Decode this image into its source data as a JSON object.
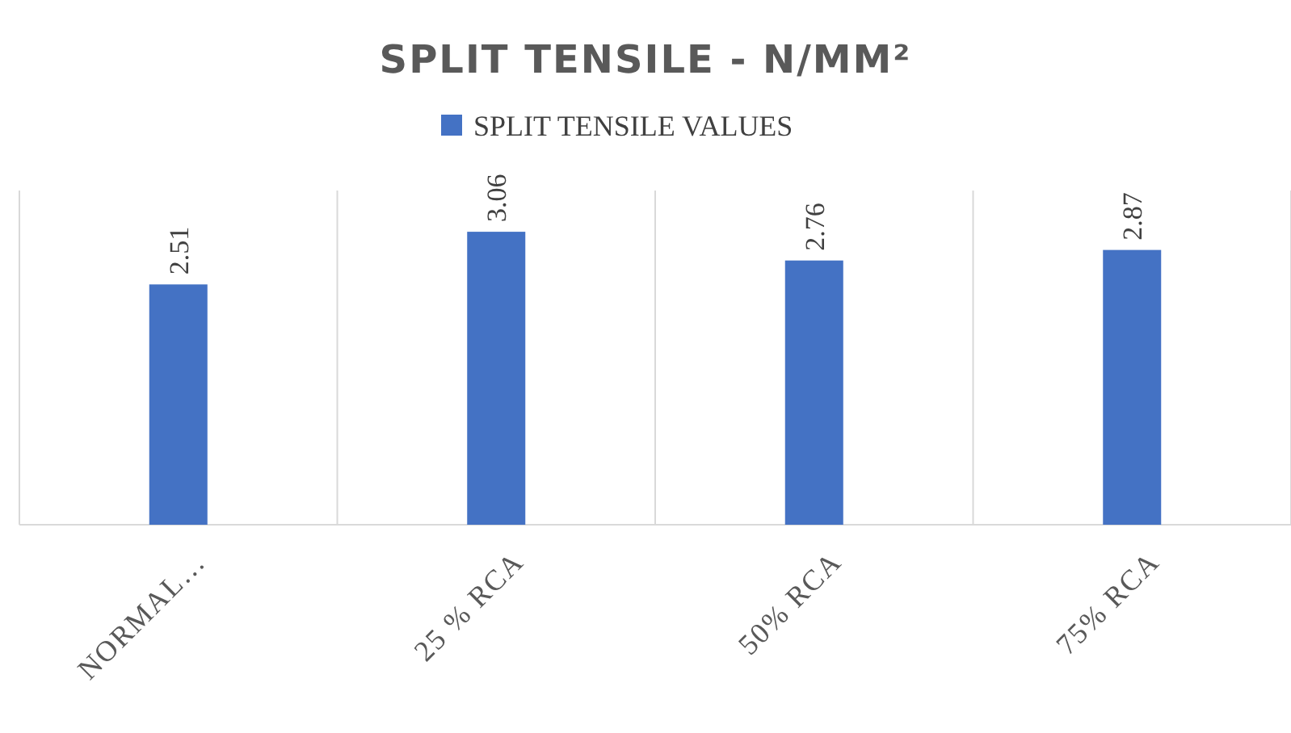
{
  "chart_data": {
    "type": "bar",
    "title": "SPLIT TENSILE - N/MM²",
    "categories": [
      "NORMAL…",
      "25 % RCA",
      "50% RCA",
      "75% RCA"
    ],
    "series": [
      {
        "name": "SPLIT TENSILE VALUES",
        "color": "#4472c4",
        "values": [
          2.51,
          3.06,
          2.76,
          2.87
        ]
      }
    ],
    "data_labels": true,
    "grid": "x",
    "legend": "top"
  }
}
